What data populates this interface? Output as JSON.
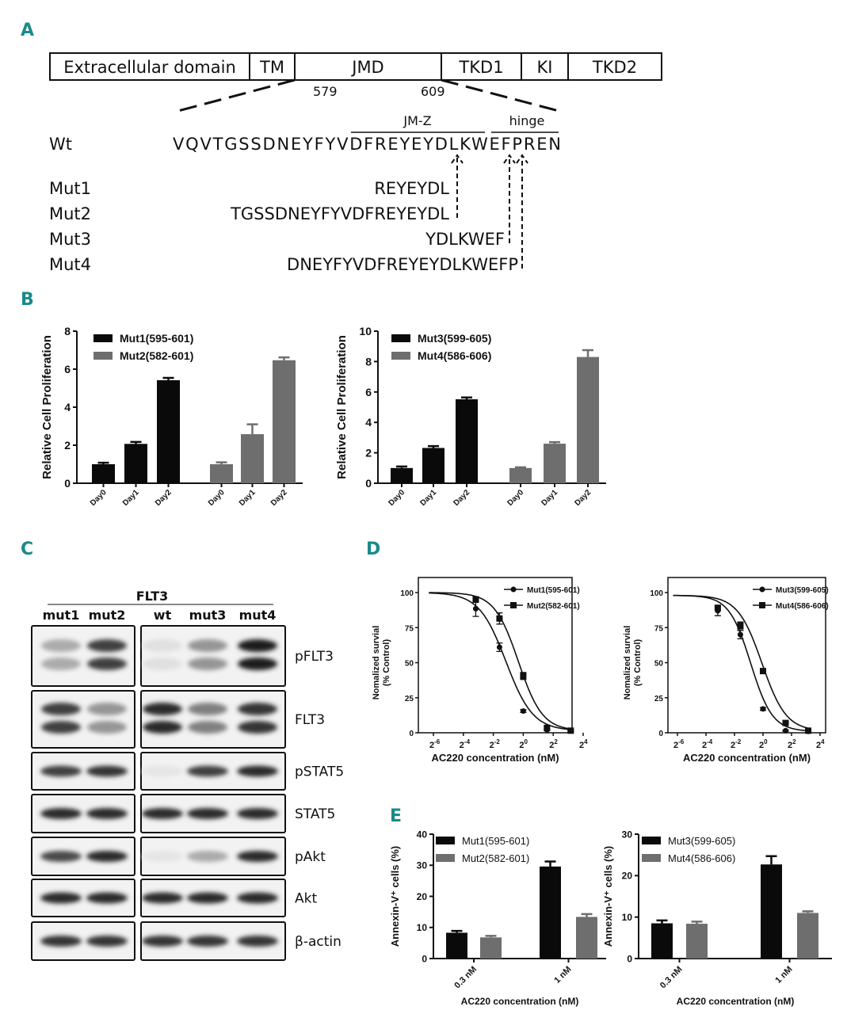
{
  "panel_labels": {
    "a": "A",
    "b": "B",
    "c": "C",
    "d": "D",
    "e": "E"
  },
  "panel_a": {
    "domains": [
      "Extracellular domain",
      "TM",
      "JMD",
      "TKD1",
      "KI",
      "TKD2"
    ],
    "positions": [
      "579",
      "609"
    ],
    "region_labels": {
      "jmz": "JM-Z",
      "hinge": "hinge"
    },
    "wt": {
      "label": "Wt",
      "sequence": "VQVTGSSDNEYFYVDFREYEYDLKWEFPREN"
    },
    "mutants": [
      {
        "label": "Mut1",
        "sequence": "REYEYDL"
      },
      {
        "label": "Mut2",
        "sequence": "TGSSDNEYFYVDFREYEYDL"
      },
      {
        "label": "Mut3",
        "sequence": "YDLKWEF"
      },
      {
        "label": "Mut4",
        "sequence": "DNEYFYVDFREYEYDLKWEFP"
      }
    ]
  },
  "panel_c": {
    "header": "FLT3",
    "lanes": [
      "mut1",
      "mut2",
      "wt",
      "mut3",
      "mut4"
    ],
    "rows": [
      {
        "label": "pFLT3",
        "intensity": [
          0.3,
          0.8,
          0.05,
          0.4,
          0.95
        ]
      },
      {
        "label": "FLT3",
        "intensity": [
          0.8,
          0.4,
          0.9,
          0.5,
          0.85
        ]
      },
      {
        "label": "pSTAT5",
        "intensity": [
          0.8,
          0.85,
          0.03,
          0.8,
          0.9
        ]
      },
      {
        "label": "STAT5",
        "intensity": [
          0.9,
          0.9,
          0.9,
          0.9,
          0.9
        ]
      },
      {
        "label": "pAkt",
        "intensity": [
          0.75,
          0.9,
          0.03,
          0.3,
          0.9
        ]
      },
      {
        "label": "Akt",
        "intensity": [
          0.9,
          0.9,
          0.9,
          0.9,
          0.9
        ]
      },
      {
        "label": "β-actin",
        "intensity": [
          0.85,
          0.85,
          0.85,
          0.85,
          0.85
        ]
      }
    ]
  },
  "colors": {
    "black_series": "#0a0a0a",
    "grey_series": "#6e6e6e",
    "panel_letter": "#1a8a8a"
  },
  "chart_data": [
    {
      "id": "B-left",
      "type": "bar",
      "ylabel": "Relative Cell Proliferation",
      "ylim": [
        0,
        8
      ],
      "yticks": [
        0,
        2,
        4,
        6,
        8
      ],
      "categories": [
        "Day0",
        "Day1",
        "Day2"
      ],
      "legend": "top-left",
      "series": [
        {
          "name": "Mut1(595-601)",
          "color": "#0a0a0a",
          "values": [
            1.0,
            2.07,
            5.42
          ],
          "errors": [
            0.08,
            0.1,
            0.12
          ]
        },
        {
          "name": "Mut2(582-601)",
          "color": "#6e6e6e",
          "values": [
            1.0,
            2.58,
            6.47
          ],
          "errors": [
            0.1,
            0.52,
            0.15
          ]
        }
      ]
    },
    {
      "id": "B-right",
      "type": "bar",
      "ylabel": "Relative Cell Proliferation",
      "ylim": [
        0,
        10
      ],
      "yticks": [
        0,
        2,
        4,
        6,
        8,
        10
      ],
      "categories": [
        "Day0",
        "Day1",
        "Day2"
      ],
      "legend": "top-left",
      "series": [
        {
          "name": "Mut3(599-605)",
          "color": "#0a0a0a",
          "values": [
            1.0,
            2.32,
            5.52
          ],
          "errors": [
            0.1,
            0.12,
            0.12
          ]
        },
        {
          "name": "Mut4(586-606)",
          "color": "#6e6e6e",
          "values": [
            1.0,
            2.6,
            8.3
          ],
          "errors": [
            0.05,
            0.1,
            0.45
          ]
        }
      ]
    },
    {
      "id": "D-left",
      "type": "line",
      "xlabel": "AC220 concentration (nM)",
      "ylabel": [
        "Nomalized survial",
        "(% Control)"
      ],
      "xscale": "log2",
      "tick_base": "2",
      "xtick_exponents": [
        -6,
        -4,
        -2,
        0,
        2,
        4
      ],
      "ylim": [
        0,
        100
      ],
      "yticks": [
        0,
        25,
        50,
        75,
        100
      ],
      "legend": "top-right",
      "series": [
        {
          "name": "Mut1(595-601)",
          "marker": "circle",
          "x": [
            0.111,
            0.333,
            1,
            3,
            9
          ],
          "y": [
            88.5,
            61,
            15.5,
            2,
            1.5
          ],
          "errors": [
            5.5,
            3,
            1,
            0.5,
            0.5
          ]
        },
        {
          "name": "Mut2(582-601)",
          "marker": "square",
          "x": [
            0.111,
            0.333,
            1,
            3,
            9
          ],
          "y": [
            95,
            81.5,
            40.5,
            3.5,
            1.5
          ],
          "errors": [
            2,
            4,
            2.5,
            1,
            0.5
          ]
        }
      ]
    },
    {
      "id": "D-right",
      "type": "line",
      "xlabel": "AC220 concentration (nM)",
      "ylabel": [
        "Nomalized survial",
        "(% Control)"
      ],
      "xscale": "log2",
      "tick_base": "2",
      "xtick_exponents": [
        -6,
        -4,
        -2,
        0,
        2,
        4
      ],
      "ylim": [
        0,
        100
      ],
      "yticks": [
        0,
        25,
        50,
        75,
        100
      ],
      "legend": "top-right",
      "series": [
        {
          "name": "Mut3(599-605)",
          "marker": "circle",
          "x": [
            0.111,
            0.333,
            1,
            3,
            9
          ],
          "y": [
            87,
            70,
            17,
            1.5,
            1
          ],
          "errors": [
            3.5,
            3,
            1,
            0.5,
            0.5
          ]
        },
        {
          "name": "Mut4(586-606)",
          "marker": "square",
          "x": [
            0.111,
            0.333,
            1,
            3,
            9
          ],
          "y": [
            89,
            76.5,
            44,
            7,
            1.5
          ],
          "errors": [
            2,
            2.5,
            1.5,
            1,
            1
          ]
        }
      ]
    },
    {
      "id": "E-left",
      "type": "bar",
      "xlabel": "AC220 concentration (nM)",
      "ylabel": "Annexin-V⁺ cells (%)",
      "ylim": [
        0,
        40
      ],
      "yticks": [
        0,
        10,
        20,
        30,
        40
      ],
      "categories": [
        "0.3 nM",
        "1 nM"
      ],
      "legend": "top-left",
      "series": [
        {
          "name": "Mut1(595-601)",
          "color": "#0a0a0a",
          "values": [
            8.3,
            29.6
          ],
          "errors": [
            0.6,
            1.6
          ]
        },
        {
          "name": "Mut2(582-601)",
          "color": "#6e6e6e",
          "values": [
            6.8,
            13.4
          ],
          "errors": [
            0.5,
            0.9
          ]
        }
      ]
    },
    {
      "id": "E-right",
      "type": "bar",
      "xlabel": "AC220 concentration (nM)",
      "ylabel": "Annexin-V⁺ cells (%)",
      "ylim": [
        0,
        30
      ],
      "yticks": [
        0,
        10,
        20,
        30
      ],
      "categories": [
        "0.3 nM",
        "1 nM"
      ],
      "legend": "top-left",
      "series": [
        {
          "name": "Mut3(599-605)",
          "color": "#0a0a0a",
          "values": [
            8.5,
            22.7
          ],
          "errors": [
            0.7,
            2.0
          ]
        },
        {
          "name": "Mut4(586-606)",
          "color": "#6e6e6e",
          "values": [
            8.4,
            11.0
          ],
          "errors": [
            0.5,
            0.4
          ]
        }
      ]
    }
  ]
}
